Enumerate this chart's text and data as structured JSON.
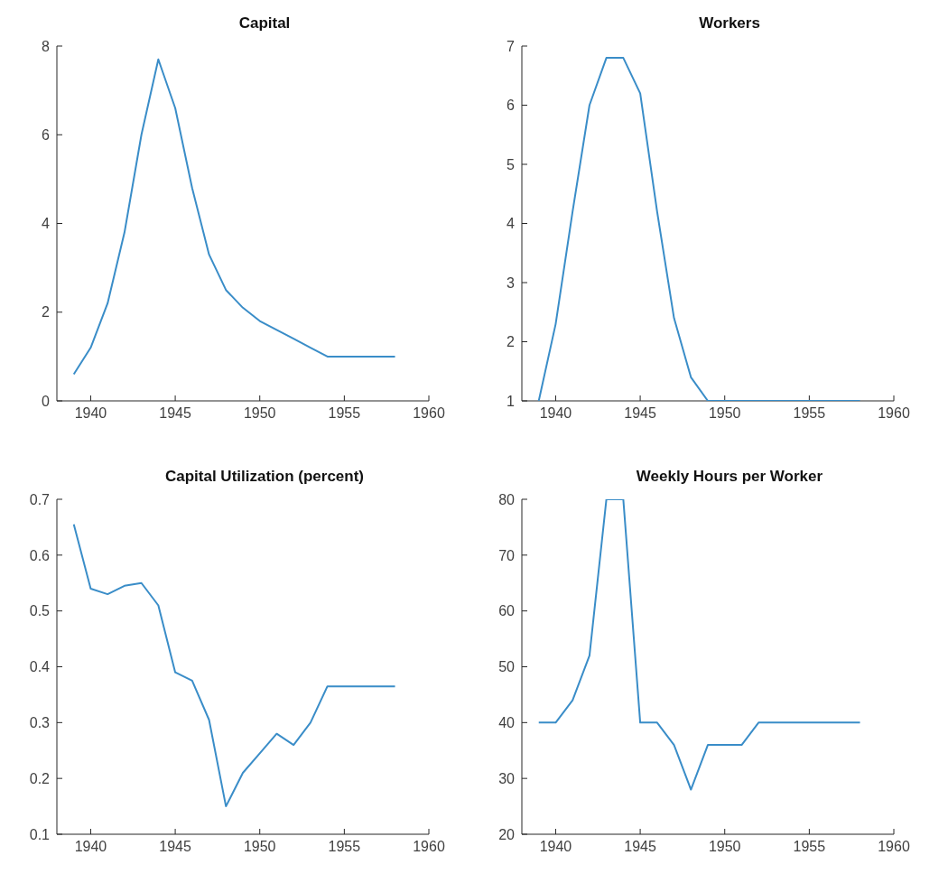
{
  "chart_data": [
    {
      "type": "line",
      "title": "Capital",
      "x": [
        1939,
        1940,
        1941,
        1942,
        1943,
        1944,
        1945,
        1946,
        1947,
        1948,
        1949,
        1950,
        1951,
        1952,
        1953,
        1954,
        1955,
        1956,
        1957,
        1958
      ],
      "values": [
        0.6,
        1.2,
        2.2,
        3.8,
        6.0,
        7.7,
        6.6,
        4.8,
        3.3,
        2.5,
        2.1,
        1.8,
        1.6,
        1.4,
        1.2,
        1.0,
        1.0,
        1.0,
        1.0,
        1.0
      ],
      "color": "#3a8dc8",
      "xlim": [
        1938,
        1960
      ],
      "xticks": [
        1940,
        1945,
        1950,
        1955,
        1960
      ],
      "ylim": [
        0,
        8
      ],
      "yticks": [
        0,
        2,
        4,
        6,
        8
      ],
      "marker": "none"
    },
    {
      "type": "line",
      "title": "Workers",
      "x": [
        1939,
        1940,
        1941,
        1942,
        1943,
        1944,
        1945,
        1946,
        1947,
        1948,
        1949,
        1950,
        1951,
        1952,
        1953,
        1954,
        1955,
        1956,
        1957,
        1958
      ],
      "values": [
        1.0,
        2.3,
        4.2,
        6.0,
        6.8,
        6.8,
        6.2,
        4.2,
        2.4,
        1.4,
        1.0,
        1.0,
        1.0,
        1.0,
        1.0,
        1.0,
        1.0,
        1.0,
        1.0,
        1.0
      ],
      "color": "#3a8dc8",
      "xlim": [
        1938,
        1960
      ],
      "xticks": [
        1940,
        1945,
        1950,
        1955,
        1960
      ],
      "ylim": [
        1,
        7
      ],
      "yticks": [
        1,
        2,
        3,
        4,
        5,
        6,
        7
      ],
      "marker": "none"
    },
    {
      "type": "line",
      "title": "Capital Utilization (percent)",
      "x": [
        1939,
        1940,
        1941,
        1942,
        1943,
        1944,
        1945,
        1946,
        1947,
        1948,
        1949,
        1950,
        1951,
        1952,
        1953,
        1954,
        1955,
        1956,
        1957,
        1958
      ],
      "values": [
        0.655,
        0.54,
        0.53,
        0.545,
        0.55,
        0.51,
        0.39,
        0.375,
        0.305,
        0.15,
        0.21,
        0.245,
        0.28,
        0.26,
        0.3,
        0.365,
        0.365,
        0.365,
        0.365,
        0.365
      ],
      "color": "#3a8dc8",
      "xlim": [
        1938,
        1960
      ],
      "xticks": [
        1940,
        1945,
        1950,
        1955,
        1960
      ],
      "ylim": [
        0.1,
        0.7
      ],
      "yticks": [
        0.1,
        0.2,
        0.3,
        0.4,
        0.5,
        0.6,
        0.7
      ],
      "marker": "none"
    },
    {
      "type": "line",
      "title": "Weekly Hours per Worker",
      "x": [
        1939,
        1940,
        1941,
        1942,
        1943,
        1944,
        1945,
        1946,
        1947,
        1948,
        1949,
        1950,
        1951,
        1952,
        1953,
        1954,
        1955,
        1956,
        1957,
        1958
      ],
      "values": [
        40,
        40,
        44,
        52,
        80,
        80,
        40,
        40,
        36,
        28,
        36,
        36,
        36,
        40,
        40,
        40,
        40,
        40,
        40,
        40
      ],
      "color": "#3a8dc8",
      "xlim": [
        1938,
        1960
      ],
      "xticks": [
        1940,
        1945,
        1950,
        1955,
        1960
      ],
      "ylim": [
        20,
        80
      ],
      "yticks": [
        20,
        30,
        40,
        50,
        60,
        70,
        80
      ],
      "marker": "none"
    }
  ]
}
